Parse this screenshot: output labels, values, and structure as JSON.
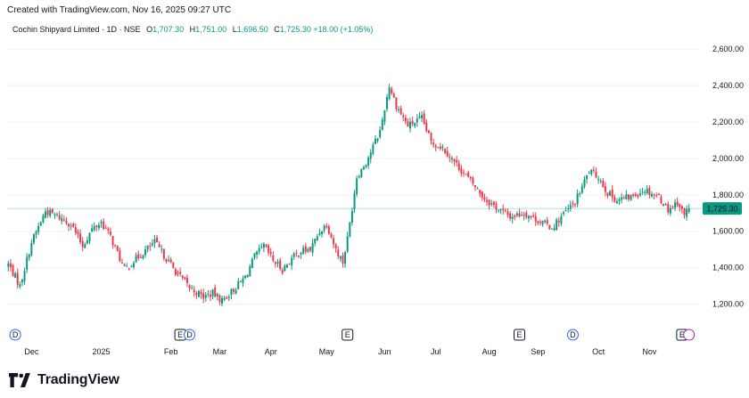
{
  "header": {
    "created": "Created with TradingView.com, Nov 16, 2025 09:27 UTC"
  },
  "legend": {
    "symbol": "Cochin Shipyard Limited · 1D · NSE",
    "o_label": "O",
    "o_value": "1,707.30",
    "h_label": "H",
    "h_value": "1,751.00",
    "l_label": "L",
    "l_value": "1,696.50",
    "c_label": "C",
    "c_value": "1,725.30",
    "change": "+18.00 (+1.05%)"
  },
  "footer": {
    "brand": "TradingView"
  },
  "colors": {
    "up": "#089981",
    "down": "#f23645",
    "price_line": "#089981",
    "grid": "#f0f3fa",
    "text": "#131722",
    "dividend": "#2962ff",
    "earnings": "#131722",
    "split": "#9c27b0"
  },
  "chart_data": {
    "type": "candlestick",
    "ylim": [
      1100,
      2650
    ],
    "y_ticks": [
      1200,
      1400,
      1600,
      1800,
      2000,
      2200,
      2400,
      2600
    ],
    "y_tick_labels": [
      "1,200.00",
      "1,400.00",
      "1,600.00",
      "1,800.00",
      "2,000.00",
      "2,200.00",
      "2,400.00",
      "2,600.00"
    ],
    "last_price": 1725.3,
    "last_price_label": "1,725.30",
    "x_labels": [
      "Dec",
      "2025",
      "Feb",
      "Mar",
      "Apr",
      "May",
      "Jun",
      "Jul",
      "Aug",
      "Sep",
      "Oct",
      "Nov"
    ],
    "x_label_index": [
      10,
      40,
      70,
      91,
      113,
      137,
      162,
      184,
      207,
      228,
      254,
      276
    ],
    "events": [
      {
        "index": 3,
        "type": "dividend",
        "label": "D"
      },
      {
        "index": 74,
        "type": "earnings",
        "label": "E"
      },
      {
        "index": 78,
        "type": "dividend",
        "label": "D"
      },
      {
        "index": 146,
        "type": "earnings",
        "label": "E"
      },
      {
        "index": 220,
        "type": "earnings",
        "label": "E"
      },
      {
        "index": 243,
        "type": "dividend",
        "label": "D"
      },
      {
        "index": 290,
        "type": "earnings",
        "label": "E"
      },
      {
        "index": 293,
        "type": "split",
        "label": ""
      }
    ],
    "anchors": [
      [
        0,
        1420
      ],
      [
        5,
        1300
      ],
      [
        10,
        1540
      ],
      [
        16,
        1710
      ],
      [
        20,
        1690
      ],
      [
        27,
        1640
      ],
      [
        32,
        1520
      ],
      [
        36,
        1610
      ],
      [
        40,
        1650
      ],
      [
        44,
        1570
      ],
      [
        50,
        1390
      ],
      [
        56,
        1460
      ],
      [
        63,
        1540
      ],
      [
        68,
        1450
      ],
      [
        72,
        1380
      ],
      [
        78,
        1290
      ],
      [
        84,
        1240
      ],
      [
        88,
        1260
      ],
      [
        92,
        1220
      ],
      [
        97,
        1280
      ],
      [
        102,
        1350
      ],
      [
        106,
        1460
      ],
      [
        110,
        1520
      ],
      [
        114,
        1440
      ],
      [
        118,
        1390
      ],
      [
        122,
        1450
      ],
      [
        126,
        1490
      ],
      [
        130,
        1500
      ],
      [
        134,
        1600
      ],
      [
        137,
        1640
      ],
      [
        141,
        1500
      ],
      [
        144,
        1430
      ],
      [
        146,
        1560
      ],
      [
        150,
        1900
      ],
      [
        154,
        1980
      ],
      [
        160,
        2150
      ],
      [
        164,
        2400
      ],
      [
        167,
        2290
      ],
      [
        172,
        2180
      ],
      [
        178,
        2220
      ],
      [
        182,
        2090
      ],
      [
        187,
        2060
      ],
      [
        194,
        1950
      ],
      [
        200,
        1860
      ],
      [
        205,
        1780
      ],
      [
        210,
        1730
      ],
      [
        216,
        1680
      ],
      [
        222,
        1700
      ],
      [
        228,
        1660
      ],
      [
        234,
        1620
      ],
      [
        238,
        1680
      ],
      [
        244,
        1760
      ],
      [
        250,
        1930
      ],
      [
        254,
        1900
      ],
      [
        258,
        1810
      ],
      [
        262,
        1770
      ],
      [
        268,
        1790
      ],
      [
        274,
        1830
      ],
      [
        280,
        1790
      ],
      [
        284,
        1720
      ],
      [
        288,
        1760
      ],
      [
        291,
        1690
      ],
      [
        293,
        1725
      ]
    ]
  }
}
